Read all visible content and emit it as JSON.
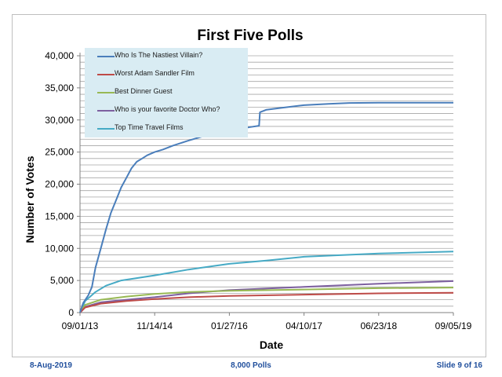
{
  "slide": {
    "footer_left": "8-Aug-2019",
    "footer_center": "8,000 Polls",
    "footer_right": "Slide 9 of 16"
  },
  "chart_data": {
    "type": "line",
    "title": "First Five Polls",
    "xlabel": "Date",
    "ylabel": "Number of Votes",
    "xlim": [
      "2013-09-01",
      "2019-09-05"
    ],
    "ylim": [
      0,
      40000
    ],
    "x_ticks": [
      "09/01/13",
      "11/14/14",
      "01/27/16",
      "04/10/17",
      "06/23/18",
      "09/05/19"
    ],
    "y_ticks": [
      "0",
      "5,000",
      "10,000",
      "15,000",
      "20,000",
      "25,000",
      "30,000",
      "35,000",
      "40,000"
    ],
    "grid": true,
    "legend_position": "top-left",
    "series": [
      {
        "name": "Who Is The Nastiest Villain?",
        "color": "#4a7ebb",
        "points": [
          [
            "2013-09-01",
            0
          ],
          [
            "2013-09-20",
            1500
          ],
          [
            "2013-10-20",
            2700
          ],
          [
            "2013-11-10",
            4000
          ],
          [
            "2013-12-01",
            7000
          ],
          [
            "2014-01-01",
            10000
          ],
          [
            "2014-02-01",
            13000
          ],
          [
            "2014-03-01",
            15500
          ],
          [
            "2014-04-01",
            17500
          ],
          [
            "2014-05-01",
            19500
          ],
          [
            "2014-06-01",
            21000
          ],
          [
            "2014-07-01",
            22500
          ],
          [
            "2014-08-01",
            23500
          ],
          [
            "2014-09-01",
            24000
          ],
          [
            "2014-10-01",
            24500
          ],
          [
            "2014-11-14",
            25000
          ],
          [
            "2015-01-01",
            25400
          ],
          [
            "2015-03-01",
            26000
          ],
          [
            "2015-06-01",
            26800
          ],
          [
            "2015-09-01",
            27500
          ],
          [
            "2015-12-01",
            28000
          ],
          [
            "2016-03-01",
            28500
          ],
          [
            "2016-06-01",
            28900
          ],
          [
            "2016-07-20",
            29100
          ],
          [
            "2016-07-25",
            31200
          ],
          [
            "2016-09-01",
            31600
          ],
          [
            "2016-12-01",
            31900
          ],
          [
            "2017-04-10",
            32300
          ],
          [
            "2017-09-01",
            32500
          ],
          [
            "2018-01-01",
            32650
          ],
          [
            "2018-06-23",
            32700
          ],
          [
            "2019-09-05",
            32700
          ]
        ]
      },
      {
        "name": "Worst Adam Sandler Film",
        "color": "#be4b48",
        "points": [
          [
            "2013-09-01",
            0
          ],
          [
            "2013-10-01",
            800
          ],
          [
            "2014-01-01",
            1400
          ],
          [
            "2014-06-01",
            1800
          ],
          [
            "2014-11-14",
            2100
          ],
          [
            "2015-06-01",
            2400
          ],
          [
            "2016-01-27",
            2600
          ],
          [
            "2017-04-10",
            2800
          ],
          [
            "2018-06-23",
            3000
          ],
          [
            "2019-09-05",
            3100
          ]
        ]
      },
      {
        "name": "Best Dinner Guest",
        "color": "#98b954",
        "points": [
          [
            "2013-09-01",
            0
          ],
          [
            "2013-10-01",
            1200
          ],
          [
            "2014-01-01",
            2000
          ],
          [
            "2014-06-01",
            2500
          ],
          [
            "2014-11-14",
            2900
          ],
          [
            "2015-06-01",
            3200
          ],
          [
            "2016-01-27",
            3400
          ],
          [
            "2017-04-10",
            3600
          ],
          [
            "2018-06-23",
            3800
          ],
          [
            "2019-09-05",
            3900
          ]
        ]
      },
      {
        "name": "Who is your favorite Doctor Who?",
        "color": "#7d60a0",
        "points": [
          [
            "2013-09-01",
            0
          ],
          [
            "2013-10-01",
            900
          ],
          [
            "2014-01-01",
            1600
          ],
          [
            "2014-06-01",
            2000
          ],
          [
            "2014-11-14",
            2400
          ],
          [
            "2015-06-01",
            3000
          ],
          [
            "2016-01-27",
            3500
          ],
          [
            "2017-04-10",
            4000
          ],
          [
            "2018-06-23",
            4500
          ],
          [
            "2019-09-05",
            4900
          ]
        ]
      },
      {
        "name": "Top Time Travel Films",
        "color": "#46aac5",
        "points": [
          [
            "2013-09-01",
            0
          ],
          [
            "2013-10-01",
            1800
          ],
          [
            "2013-12-01",
            3200
          ],
          [
            "2014-02-01",
            4200
          ],
          [
            "2014-05-01",
            5000
          ],
          [
            "2014-11-14",
            5800
          ],
          [
            "2015-06-01",
            6700
          ],
          [
            "2016-01-27",
            7600
          ],
          [
            "2016-09-01",
            8100
          ],
          [
            "2017-04-10",
            8700
          ],
          [
            "2018-06-23",
            9200
          ],
          [
            "2019-09-05",
            9500
          ]
        ]
      }
    ]
  }
}
